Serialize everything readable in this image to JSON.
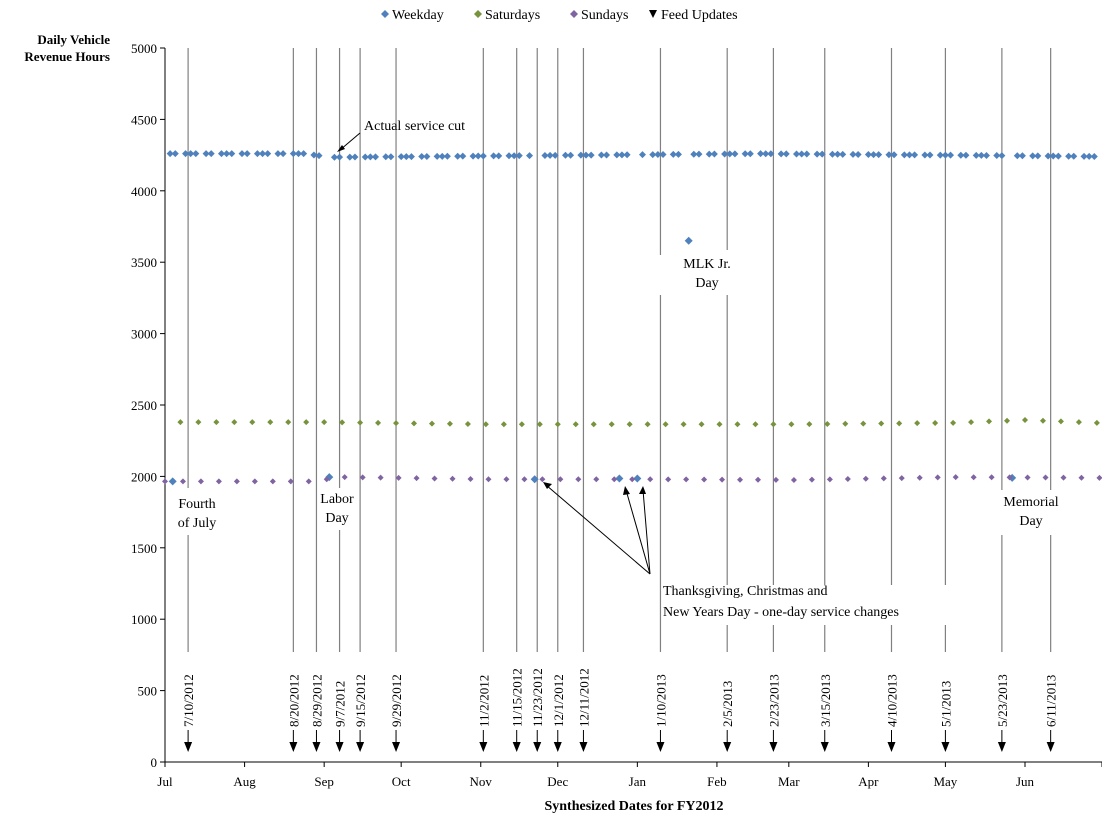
{
  "chart_data": {
    "type": "scatter",
    "title": "",
    "ylabel_lines": [
      "Daily Vehicle",
      "Revenue Hours"
    ],
    "xlabel": "Synthesized Dates for FY2012",
    "x_range": [
      "2012-07-01",
      "2013-06-30"
    ],
    "ylim": [
      0,
      5000
    ],
    "y_ticks": [
      0,
      500,
      1000,
      1500,
      2000,
      2500,
      3000,
      3500,
      4000,
      4500,
      5000
    ],
    "x_tick_labels": [
      "Jul",
      "Aug",
      "Sep",
      "Oct",
      "Nov",
      "Dec",
      "Jan",
      "Feb",
      "Mar",
      "Apr",
      "May",
      "Jun"
    ],
    "legend_position": "top",
    "grid": false,
    "series": [
      {
        "name": "Weekday",
        "marker": "diamond",
        "color": "#4F81BD",
        "values": [
          {
            "x": "2012-07-01",
            "y": 4260
          },
          {
            "x": "2012-07-04",
            "y": 1965
          },
          {
            "x": "2012-08-24",
            "y": 4260
          },
          {
            "x": "2012-09-03",
            "y": 1995
          },
          {
            "x": "2012-09-04",
            "y": 4235
          },
          {
            "x": "2012-11-22",
            "y": 1980
          },
          {
            "x": "2012-12-25",
            "y": 1985
          },
          {
            "x": "2013-01-01",
            "y": 1985
          },
          {
            "x": "2013-01-21",
            "y": 3650
          },
          {
            "x": "2013-02-18",
            "y": 4260
          },
          {
            "x": "2013-05-27",
            "y": 1990
          },
          {
            "x": "2013-06-03",
            "y": 4245
          },
          {
            "x": "2013-06-30",
            "y": 4240
          }
        ]
      },
      {
        "name": "Saturdays",
        "marker": "diamond",
        "color": "#77933C",
        "values": [
          {
            "x": "2012-07-07",
            "y": 2380
          },
          {
            "x": "2012-09-01",
            "y": 2380
          },
          {
            "x": "2012-11-03",
            "y": 2365
          },
          {
            "x": "2013-01-05",
            "y": 2365
          },
          {
            "x": "2013-03-02",
            "y": 2365
          },
          {
            "x": "2013-05-04",
            "y": 2375
          },
          {
            "x": "2013-06-01",
            "y": 2395
          },
          {
            "x": "2013-06-29",
            "y": 2375
          }
        ]
      },
      {
        "name": "Sundays",
        "marker": "diamond",
        "color": "#8064A2",
        "values": [
          {
            "x": "2012-07-01",
            "y": 1965
          },
          {
            "x": "2012-08-26",
            "y": 1965
          },
          {
            "x": "2012-09-09",
            "y": 1995
          },
          {
            "x": "2012-11-04",
            "y": 1980
          },
          {
            "x": "2013-01-06",
            "y": 1980
          },
          {
            "x": "2013-03-03",
            "y": 1975
          },
          {
            "x": "2013-05-05",
            "y": 1995
          },
          {
            "x": "2013-06-30",
            "y": 1990
          }
        ]
      },
      {
        "name": "Feed Updates",
        "marker": "triangle-down",
        "color": "#000000",
        "dates": [
          "7/10/2012",
          "8/20/2012",
          "8/29/2012",
          "9/7/2012",
          "9/15/2012",
          "9/29/2012",
          "11/2/2012",
          "11/15/2012",
          "11/23/2012",
          "12/1/2012",
          "12/11/2012",
          "1/10/2013",
          "2/5/2013",
          "2/23/2013",
          "3/15/2013",
          "4/10/2013",
          "5/1/2013",
          "5/23/2013",
          "6/11/2013"
        ]
      }
    ],
    "annotations": [
      {
        "text": "Actual service cut"
      },
      {
        "lines": [
          "Fourth",
          "of July"
        ]
      },
      {
        "lines": [
          "Labor",
          "Day"
        ]
      },
      {
        "lines": [
          "MLK Jr.",
          "Day"
        ]
      },
      {
        "lines": [
          "Memorial",
          "Day"
        ]
      },
      {
        "lines": [
          "Thanksgiving, Christmas and",
          "New Years Day - one-day service changes"
        ]
      }
    ]
  }
}
